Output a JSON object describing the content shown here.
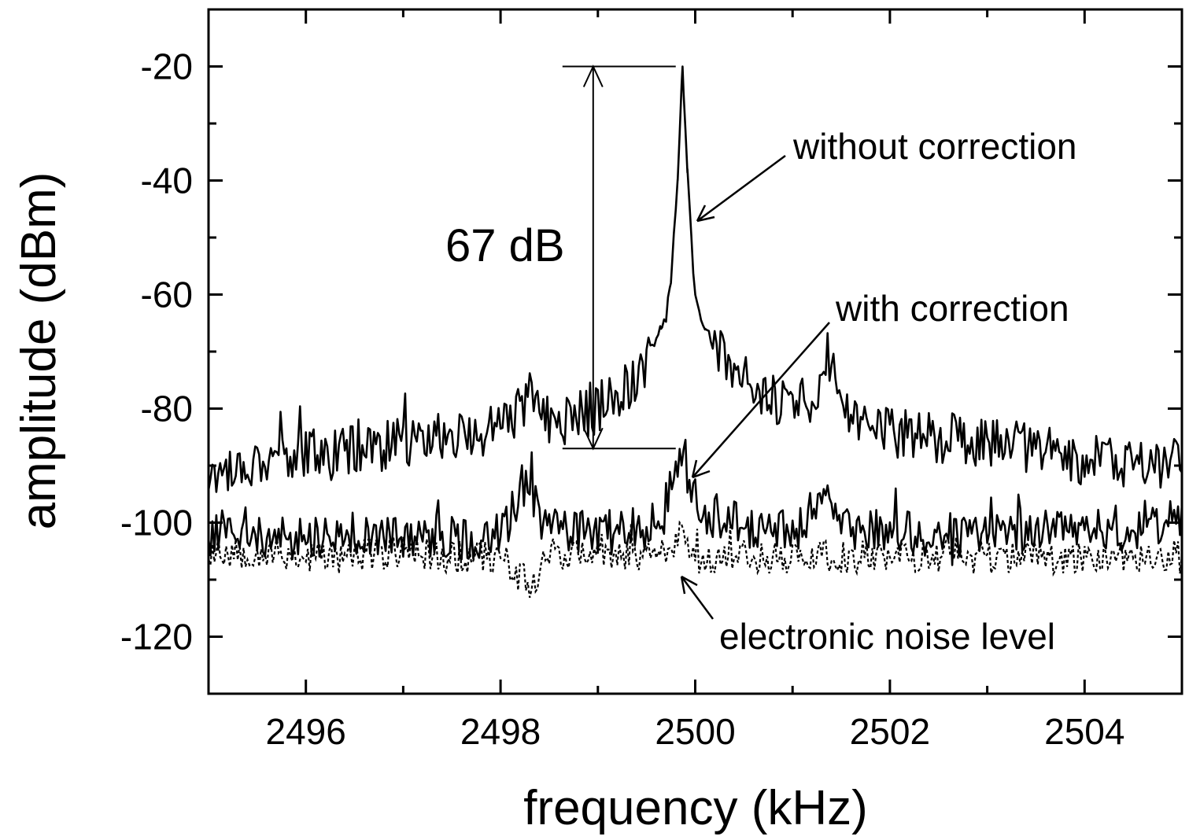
{
  "chart_data": {
    "type": "line",
    "xlabel": "frequency (kHz)",
    "ylabel": "amplitude (dBm)",
    "xlim": [
      2495,
      2505
    ],
    "ylim": [
      -130,
      -10
    ],
    "x_ticks": [
      2496,
      2498,
      2500,
      2502,
      2504
    ],
    "x_minor_ticks": [
      2497,
      2499,
      2501,
      2503
    ],
    "x_tick_labels": [
      "2496",
      "2498",
      "2500",
      "2502",
      "2504"
    ],
    "y_ticks": [
      -120,
      -100,
      -80,
      -60,
      -40,
      -20
    ],
    "y_minor_ticks": [
      -110,
      -90,
      -70,
      -50,
      -30
    ],
    "y_tick_labels": [
      "-120",
      "-100",
      "-80",
      "-60",
      "-40",
      "-20"
    ],
    "grid": false,
    "series": [
      {
        "name": "without correction",
        "style": "solid",
        "x": [
          2495.0,
          2495.5,
          2496.0,
          2496.5,
          2497.0,
          2497.5,
          2498.0,
          2498.35,
          2498.5,
          2499.0,
          2499.3,
          2499.5,
          2499.65,
          2499.75,
          2499.82,
          2499.87,
          2499.92,
          2500.0,
          2500.1,
          2500.3,
          2500.5,
          2501.0,
          2501.2,
          2501.35,
          2501.5,
          2502.0,
          2502.5,
          2503.0,
          2503.5,
          2504.0,
          2504.5,
          2505.0
        ],
        "y": [
          -92,
          -89,
          -88,
          -87,
          -86,
          -85,
          -84,
          -77,
          -83,
          -80,
          -76,
          -72,
          -66,
          -58,
          -40,
          -20,
          -38,
          -60,
          -66,
          -72,
          -77,
          -79,
          -79,
          -70,
          -80,
          -84,
          -85,
          -86,
          -87,
          -89,
          -90,
          -89
        ]
      },
      {
        "name": "with correction",
        "style": "solid",
        "x": [
          2495.0,
          2495.5,
          2496.0,
          2496.5,
          2497.0,
          2497.5,
          2498.0,
          2498.3,
          2498.45,
          2499.0,
          2499.5,
          2499.7,
          2499.78,
          2499.85,
          2499.9,
          2499.95,
          2500.1,
          2500.5,
          2501.0,
          2501.3,
          2501.5,
          2502.0,
          2502.5,
          2503.0,
          2503.5,
          2504.0,
          2504.5,
          2505.0
        ],
        "y": [
          -101,
          -102,
          -102,
          -102,
          -102,
          -103,
          -102,
          -93,
          -101,
          -102,
          -101,
          -98,
          -92,
          -86,
          -89,
          -94,
          -98,
          -101,
          -102,
          -95,
          -101,
          -102,
          -102,
          -102,
          -101,
          -101,
          -101,
          -100
        ]
      },
      {
        "name": "electronic noise level",
        "style": "dotted",
        "x": [
          2495.0,
          2495.5,
          2496.0,
          2496.5,
          2497.0,
          2497.5,
          2498.0,
          2498.3,
          2498.5,
          2499.0,
          2499.5,
          2499.75,
          2499.85,
          2500.0,
          2500.5,
          2501.0,
          2501.5,
          2502.0,
          2502.5,
          2503.0,
          2503.5,
          2504.0,
          2504.5,
          2505.0
        ],
        "y": [
          -105,
          -105,
          -106,
          -106,
          -105,
          -106,
          -106,
          -111,
          -105,
          -106,
          -106,
          -105,
          -101,
          -106,
          -106,
          -106,
          -106,
          -106,
          -106,
          -106,
          -106,
          -106,
          -106,
          -106
        ]
      }
    ],
    "annotations": {
      "without_label": "without correction",
      "with_label": "with correction",
      "noise_label": "electronic noise level",
      "diff_label": "67 dB",
      "diff_top_y": -20,
      "diff_bottom_y": -87,
      "diff_x": 2499.0
    }
  }
}
